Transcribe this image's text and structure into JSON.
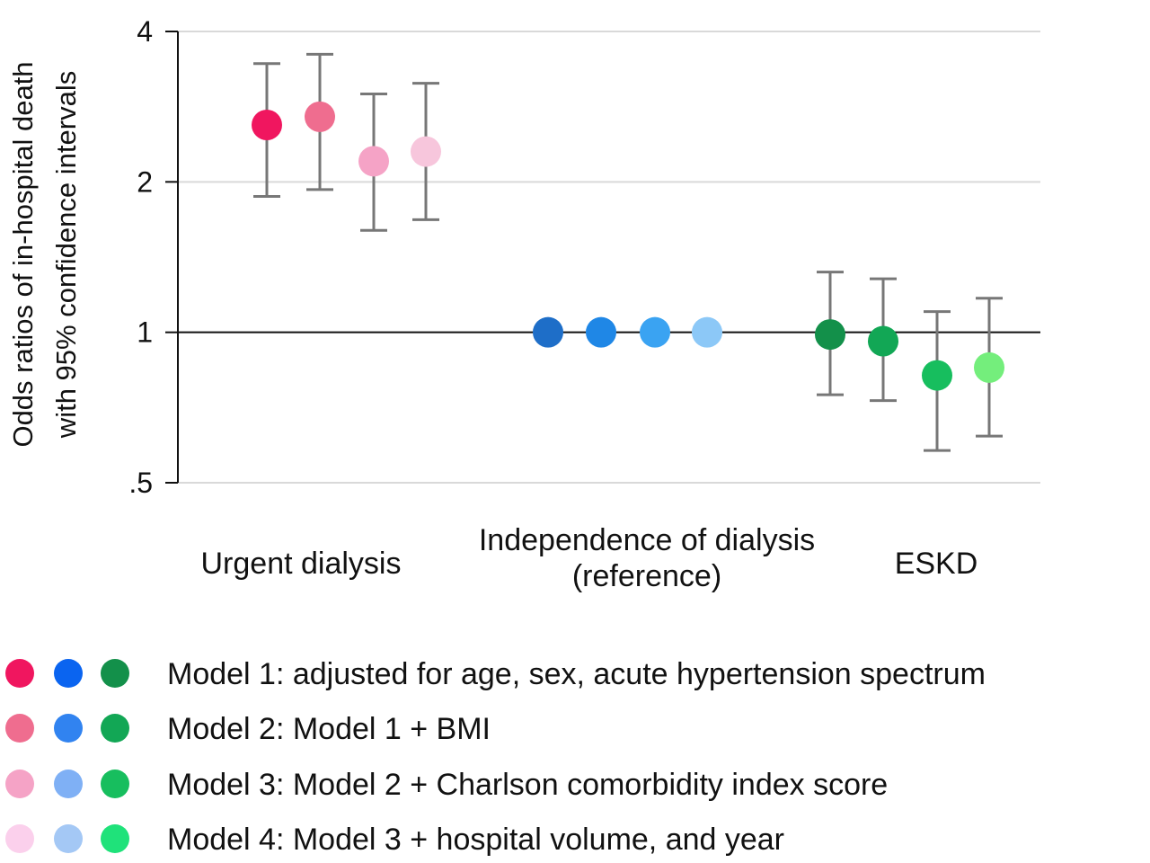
{
  "chart_data": {
    "type": "scatter",
    "y_scale": "log2",
    "ylabel_lines": [
      "Odds ratios of in-hospital death",
      "with 95% confidence intervals"
    ],
    "ylim": [
      0.5,
      4
    ],
    "yticks": [
      {
        "value": 0.5,
        "label": ".5"
      },
      {
        "value": 1,
        "label": "1"
      },
      {
        "value": 2,
        "label": "2"
      },
      {
        "value": 4,
        "label": "4"
      }
    ],
    "reference_line": 1,
    "grid": true,
    "categories": [
      {
        "lines": [
          "Urgent dialysis"
        ]
      },
      {
        "lines": [
          "Independence of dialysis",
          "(reference)"
        ]
      },
      {
        "lines": [
          "ESKD"
        ]
      }
    ],
    "series": [
      {
        "name": "Model 1: adjusted for age, sex, acute hypertension spectrum",
        "colors": [
          "#f0165f",
          "#1e6ec8",
          "#13904a"
        ],
        "values": [
          {
            "est": 2.6,
            "low": 1.87,
            "high": 3.45
          },
          {
            "est": 1.0,
            "low": null,
            "high": null
          },
          {
            "est": 0.99,
            "low": 0.75,
            "high": 1.32
          }
        ]
      },
      {
        "name": "Model 2: Model 1 + BMI",
        "colors": [
          "#ef6d8f",
          "#1f87e6",
          "#12a755"
        ],
        "values": [
          {
            "est": 2.7,
            "low": 1.93,
            "high": 3.6
          },
          {
            "est": 1.0,
            "low": null,
            "high": null
          },
          {
            "est": 0.96,
            "low": 0.73,
            "high": 1.28
          }
        ]
      },
      {
        "name": "Model 3: Model 2 + Charlson comorbidity index score",
        "colors": [
          "#f5a3c6",
          "#3aa3f2",
          "#17be5e"
        ],
        "values": [
          {
            "est": 2.2,
            "low": 1.6,
            "high": 3.0
          },
          {
            "est": 1.0,
            "low": null,
            "high": null
          },
          {
            "est": 0.82,
            "low": 0.58,
            "high": 1.1
          }
        ]
      },
      {
        "name": "Model 4: Model 3 + hospital volume, and year",
        "colors": [
          "#f7c6dc",
          "#8cc8f7",
          "#74ee7c"
        ],
        "values": [
          {
            "est": 2.3,
            "low": 1.68,
            "high": 3.15
          },
          {
            "est": 1.0,
            "low": null,
            "high": null
          },
          {
            "est": 0.85,
            "low": 0.62,
            "high": 1.17
          }
        ]
      }
    ],
    "legend": {
      "position": "bottom",
      "swatches": [
        [
          "#f0165f",
          "#0a64f0",
          "#13904a"
        ],
        [
          "#ef6d8f",
          "#3183f0",
          "#12a755"
        ],
        [
          "#f5a3c6",
          "#7fb0f5",
          "#17be5e"
        ],
        [
          "#fbd0ec",
          "#a4c8f5",
          "#1fe27a"
        ]
      ]
    }
  }
}
